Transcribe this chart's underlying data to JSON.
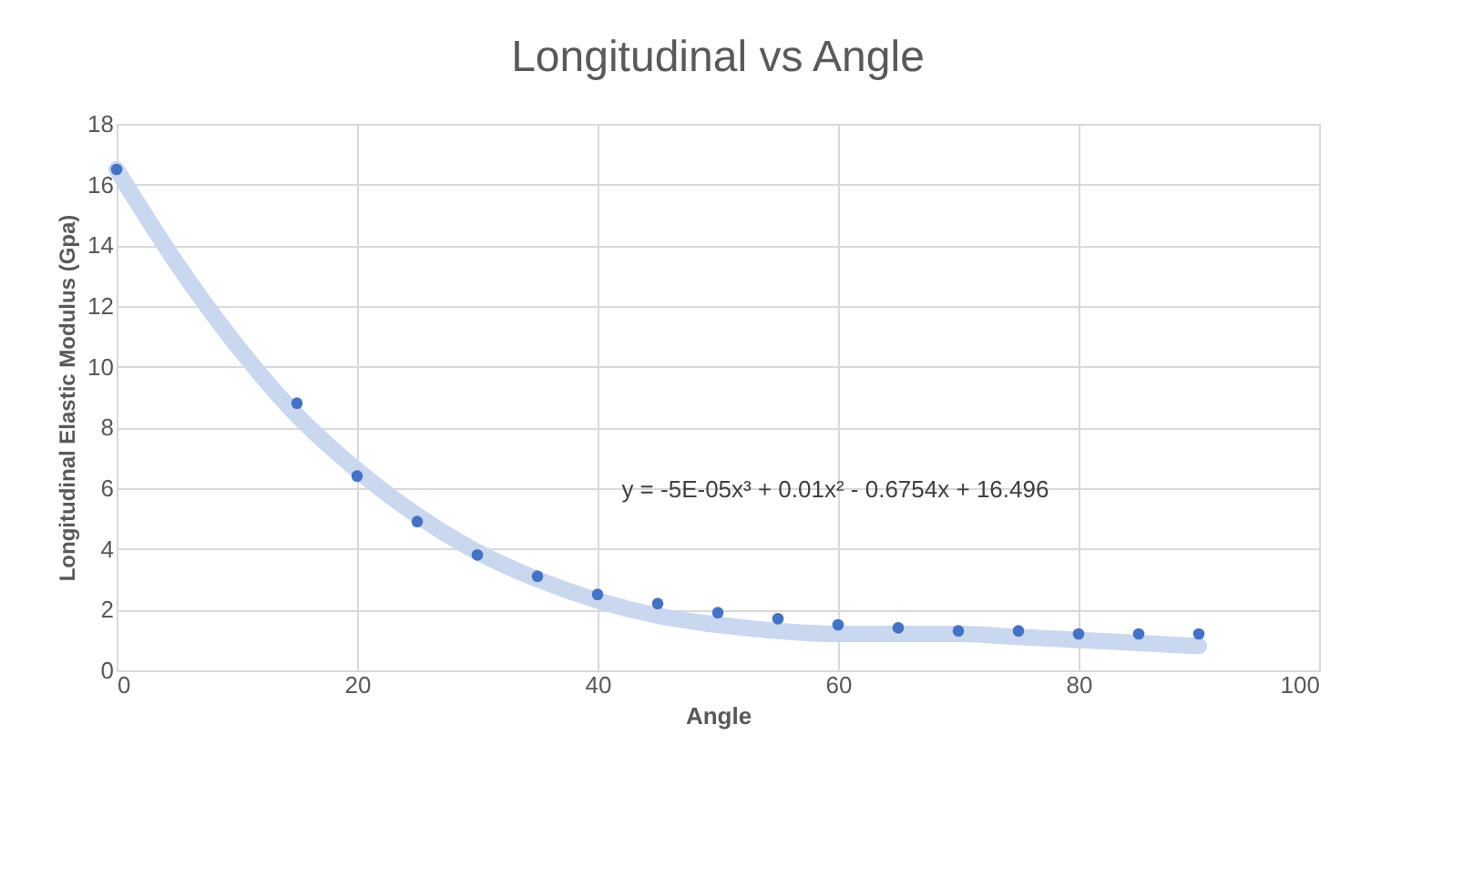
{
  "chart_data": {
    "type": "scatter",
    "title": "Longitudinal vs Angle",
    "xlabel": "Angle",
    "ylabel": "Longitudinal Elastic Modulus (Gpa)",
    "xlim": [
      0,
      100
    ],
    "xticks": [
      0,
      20,
      40,
      60,
      80,
      100
    ],
    "ylim": [
      0,
      18
    ],
    "yticks": [
      0,
      2,
      4,
      6,
      8,
      10,
      12,
      14,
      16,
      18
    ],
    "grid": true,
    "annotations": [
      "y = -5E-05x³ + 0.01x² - 0.6754x + 16.496"
    ],
    "series": [
      {
        "type": "line",
        "color": "#c9d7ef",
        "x": [
          0,
          5,
          10,
          15,
          20,
          25,
          30,
          35,
          40,
          45,
          50,
          55,
          60,
          65,
          70,
          75,
          80,
          85,
          90
        ],
        "values": [
          16.5,
          13.4,
          10.7,
          8.4,
          6.6,
          5.1,
          3.9,
          3.0,
          2.3,
          1.8,
          1.5,
          1.3,
          1.2,
          1.2,
          1.2,
          1.1,
          1.0,
          0.9,
          0.8
        ]
      },
      {
        "marker": "circle",
        "color": "#4472c4",
        "x": [
          0,
          15,
          20,
          25,
          30,
          35,
          40,
          45,
          50,
          55,
          60,
          65,
          70,
          75,
          80,
          85,
          90
        ],
        "values": [
          16.5,
          8.8,
          6.4,
          4.9,
          3.8,
          3.1,
          2.5,
          2.2,
          1.9,
          1.7,
          1.5,
          1.4,
          1.3,
          1.3,
          1.2,
          1.2,
          1.2
        ]
      }
    ]
  }
}
